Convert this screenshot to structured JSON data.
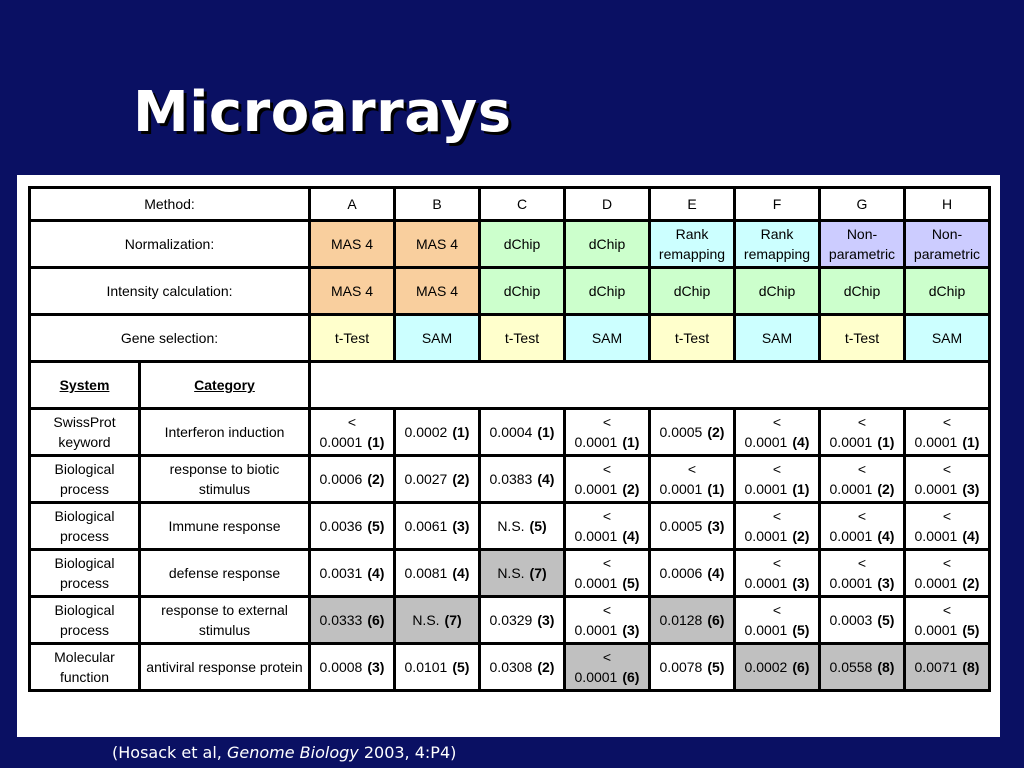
{
  "title": "Microarrays",
  "colors": {
    "background": "#0a1063",
    "mas4": "#f9cf9e",
    "dchip": "#ccffcc",
    "rank_remapping": "#ccffff",
    "nonparametric": "#ccccff",
    "ttest": "#ffffcc",
    "sam": "#ccffff",
    "shaded": "#c0c0c0"
  },
  "header": {
    "method_label": "Method:",
    "normalization_label": "Normalization:",
    "intensity_label": "Intensity calculation:",
    "gene_selection_label": "Gene selection:",
    "methods": [
      "A",
      "B",
      "C",
      "D",
      "E",
      "F",
      "G",
      "H"
    ],
    "normalization": [
      {
        "text": "MAS 4",
        "color": "#f9cf9e"
      },
      {
        "text": "MAS 4",
        "color": "#f9cf9e"
      },
      {
        "text": "dChip",
        "color": "#ccffcc"
      },
      {
        "text": "dChip",
        "color": "#ccffcc"
      },
      {
        "line1": "Rank",
        "line2": "remapping",
        "color": "#ccffff"
      },
      {
        "line1": "Rank",
        "line2": "remapping",
        "color": "#ccffff"
      },
      {
        "line1": "Non-",
        "line2": "parametric",
        "color": "#ccccff"
      },
      {
        "line1": "Non-",
        "line2": "parametric",
        "color": "#ccccff"
      }
    ],
    "intensity": [
      {
        "text": "MAS 4",
        "color": "#f9cf9e"
      },
      {
        "text": "MAS 4",
        "color": "#f9cf9e"
      },
      {
        "text": "dChip",
        "color": "#ccffcc"
      },
      {
        "text": "dChip",
        "color": "#ccffcc"
      },
      {
        "text": "dChip",
        "color": "#ccffcc"
      },
      {
        "text": "dChip",
        "color": "#ccffcc"
      },
      {
        "text": "dChip",
        "color": "#ccffcc"
      },
      {
        "text": "dChip",
        "color": "#ccffcc"
      }
    ],
    "gene_selection": [
      {
        "text": "t-Test",
        "color": "#ffffcc"
      },
      {
        "text": "SAM",
        "color": "#ccffff"
      },
      {
        "text": "t-Test",
        "color": "#ffffcc"
      },
      {
        "text": "SAM",
        "color": "#ccffff"
      },
      {
        "text": "t-Test",
        "color": "#ffffcc"
      },
      {
        "text": "SAM",
        "color": "#ccffff"
      },
      {
        "text": "t-Test",
        "color": "#ffffcc"
      },
      {
        "text": "SAM",
        "color": "#ccffff"
      }
    ],
    "system_label": "System",
    "category_label": "Category"
  },
  "rows": [
    {
      "system_line1": "SwissProt",
      "system_line2": "keyword",
      "category": "Interferon induction",
      "cells": [
        {
          "value": "< 0.0001",
          "rank": "(1)",
          "shaded": false
        },
        {
          "value": "0.0002",
          "rank": "(1)",
          "shaded": false
        },
        {
          "value": "0.0004",
          "rank": "(1)",
          "shaded": false
        },
        {
          "value": "< 0.0001",
          "rank": "(1)",
          "shaded": false
        },
        {
          "value": "0.0005",
          "rank": "(2)",
          "shaded": false
        },
        {
          "value": "< 0.0001",
          "rank": "(4)",
          "shaded": false
        },
        {
          "value": "< 0.0001",
          "rank": "(1)",
          "shaded": false
        },
        {
          "value": "< 0.0001",
          "rank": "(1)",
          "shaded": false
        }
      ]
    },
    {
      "system_line1": "Biological",
      "system_line2": "process",
      "category": "response to biotic stimulus",
      "cells": [
        {
          "value": "0.0006",
          "rank": "(2)",
          "shaded": false
        },
        {
          "value": "0.0027",
          "rank": "(2)",
          "shaded": false
        },
        {
          "value": "0.0383",
          "rank": "(4)",
          "shaded": false
        },
        {
          "value": "< 0.0001",
          "rank": "(2)",
          "shaded": false
        },
        {
          "value": "< 0.0001",
          "rank": "(1)",
          "shaded": false
        },
        {
          "value": "< 0.0001",
          "rank": "(1)",
          "shaded": false
        },
        {
          "value": "< 0.0001",
          "rank": "(2)",
          "shaded": false
        },
        {
          "value": "< 0.0001",
          "rank": "(3)",
          "shaded": false
        }
      ]
    },
    {
      "system_line1": "Biological",
      "system_line2": "process",
      "category": "Immune response",
      "cells": [
        {
          "value": "0.0036",
          "rank": "(5)",
          "shaded": false
        },
        {
          "value": "0.0061",
          "rank": "(3)",
          "shaded": false
        },
        {
          "value": "N.S.",
          "rank": "(5)",
          "shaded": false
        },
        {
          "value": "< 0.0001",
          "rank": "(4)",
          "shaded": false
        },
        {
          "value": "0.0005",
          "rank": "(3)",
          "shaded": false
        },
        {
          "value": "< 0.0001",
          "rank": "(2)",
          "shaded": false
        },
        {
          "value": "< 0.0001",
          "rank": "(4)",
          "shaded": false
        },
        {
          "value": "< 0.0001",
          "rank": "(4)",
          "shaded": false
        }
      ]
    },
    {
      "system_line1": "Biological",
      "system_line2": "process",
      "category": "defense response",
      "cells": [
        {
          "value": "0.0031",
          "rank": "(4)",
          "shaded": false
        },
        {
          "value": "0.0081",
          "rank": "(4)",
          "shaded": false
        },
        {
          "value": "N.S.",
          "rank": "(7)",
          "shaded": true
        },
        {
          "value": "< 0.0001",
          "rank": "(5)",
          "shaded": false
        },
        {
          "value": "0.0006",
          "rank": "(4)",
          "shaded": false
        },
        {
          "value": "< 0.0001",
          "rank": "(3)",
          "shaded": false
        },
        {
          "value": "< 0.0001",
          "rank": "(3)",
          "shaded": false
        },
        {
          "value": "< 0.0001",
          "rank": "(2)",
          "shaded": false
        }
      ]
    },
    {
      "system_line1": "Biological",
      "system_line2": "process",
      "category_line1": "response to external",
      "category_line2": "stimulus",
      "cells": [
        {
          "value": "0.0333",
          "rank": "(6)",
          "shaded": true
        },
        {
          "value": "N.S.",
          "rank": "(7)",
          "shaded": true
        },
        {
          "value": "0.0329",
          "rank": "(3)",
          "shaded": false
        },
        {
          "value": "< 0.0001",
          "rank": "(3)",
          "shaded": false
        },
        {
          "value": "0.0128",
          "rank": "(6)",
          "shaded": true
        },
        {
          "value": "< 0.0001",
          "rank": "(5)",
          "shaded": false
        },
        {
          "value": "0.0003",
          "rank": "(5)",
          "shaded": false
        },
        {
          "value": "< 0.0001",
          "rank": "(5)",
          "shaded": false
        }
      ]
    },
    {
      "system_line1": "Molecular",
      "system_line2": "function",
      "category": "antiviral response protein",
      "cells": [
        {
          "value": "0.0008",
          "rank": "(3)",
          "shaded": false
        },
        {
          "value": "0.0101",
          "rank": "(5)",
          "shaded": false
        },
        {
          "value": "0.0308",
          "rank": "(2)",
          "shaded": false
        },
        {
          "value": "< 0.0001",
          "rank": "(6)",
          "shaded": true
        },
        {
          "value": "0.0078",
          "rank": "(5)",
          "shaded": false
        },
        {
          "value": "0.0002",
          "rank": "(6)",
          "shaded": true
        },
        {
          "value": "0.0558",
          "rank": "(8)",
          "shaded": true
        },
        {
          "value": "0.0071",
          "rank": "(8)",
          "shaded": true
        }
      ]
    }
  ],
  "citation": {
    "prefix": "(Hosack et al, ",
    "journal": "Genome Biology",
    "suffix": " 2003, 4:P4)"
  }
}
